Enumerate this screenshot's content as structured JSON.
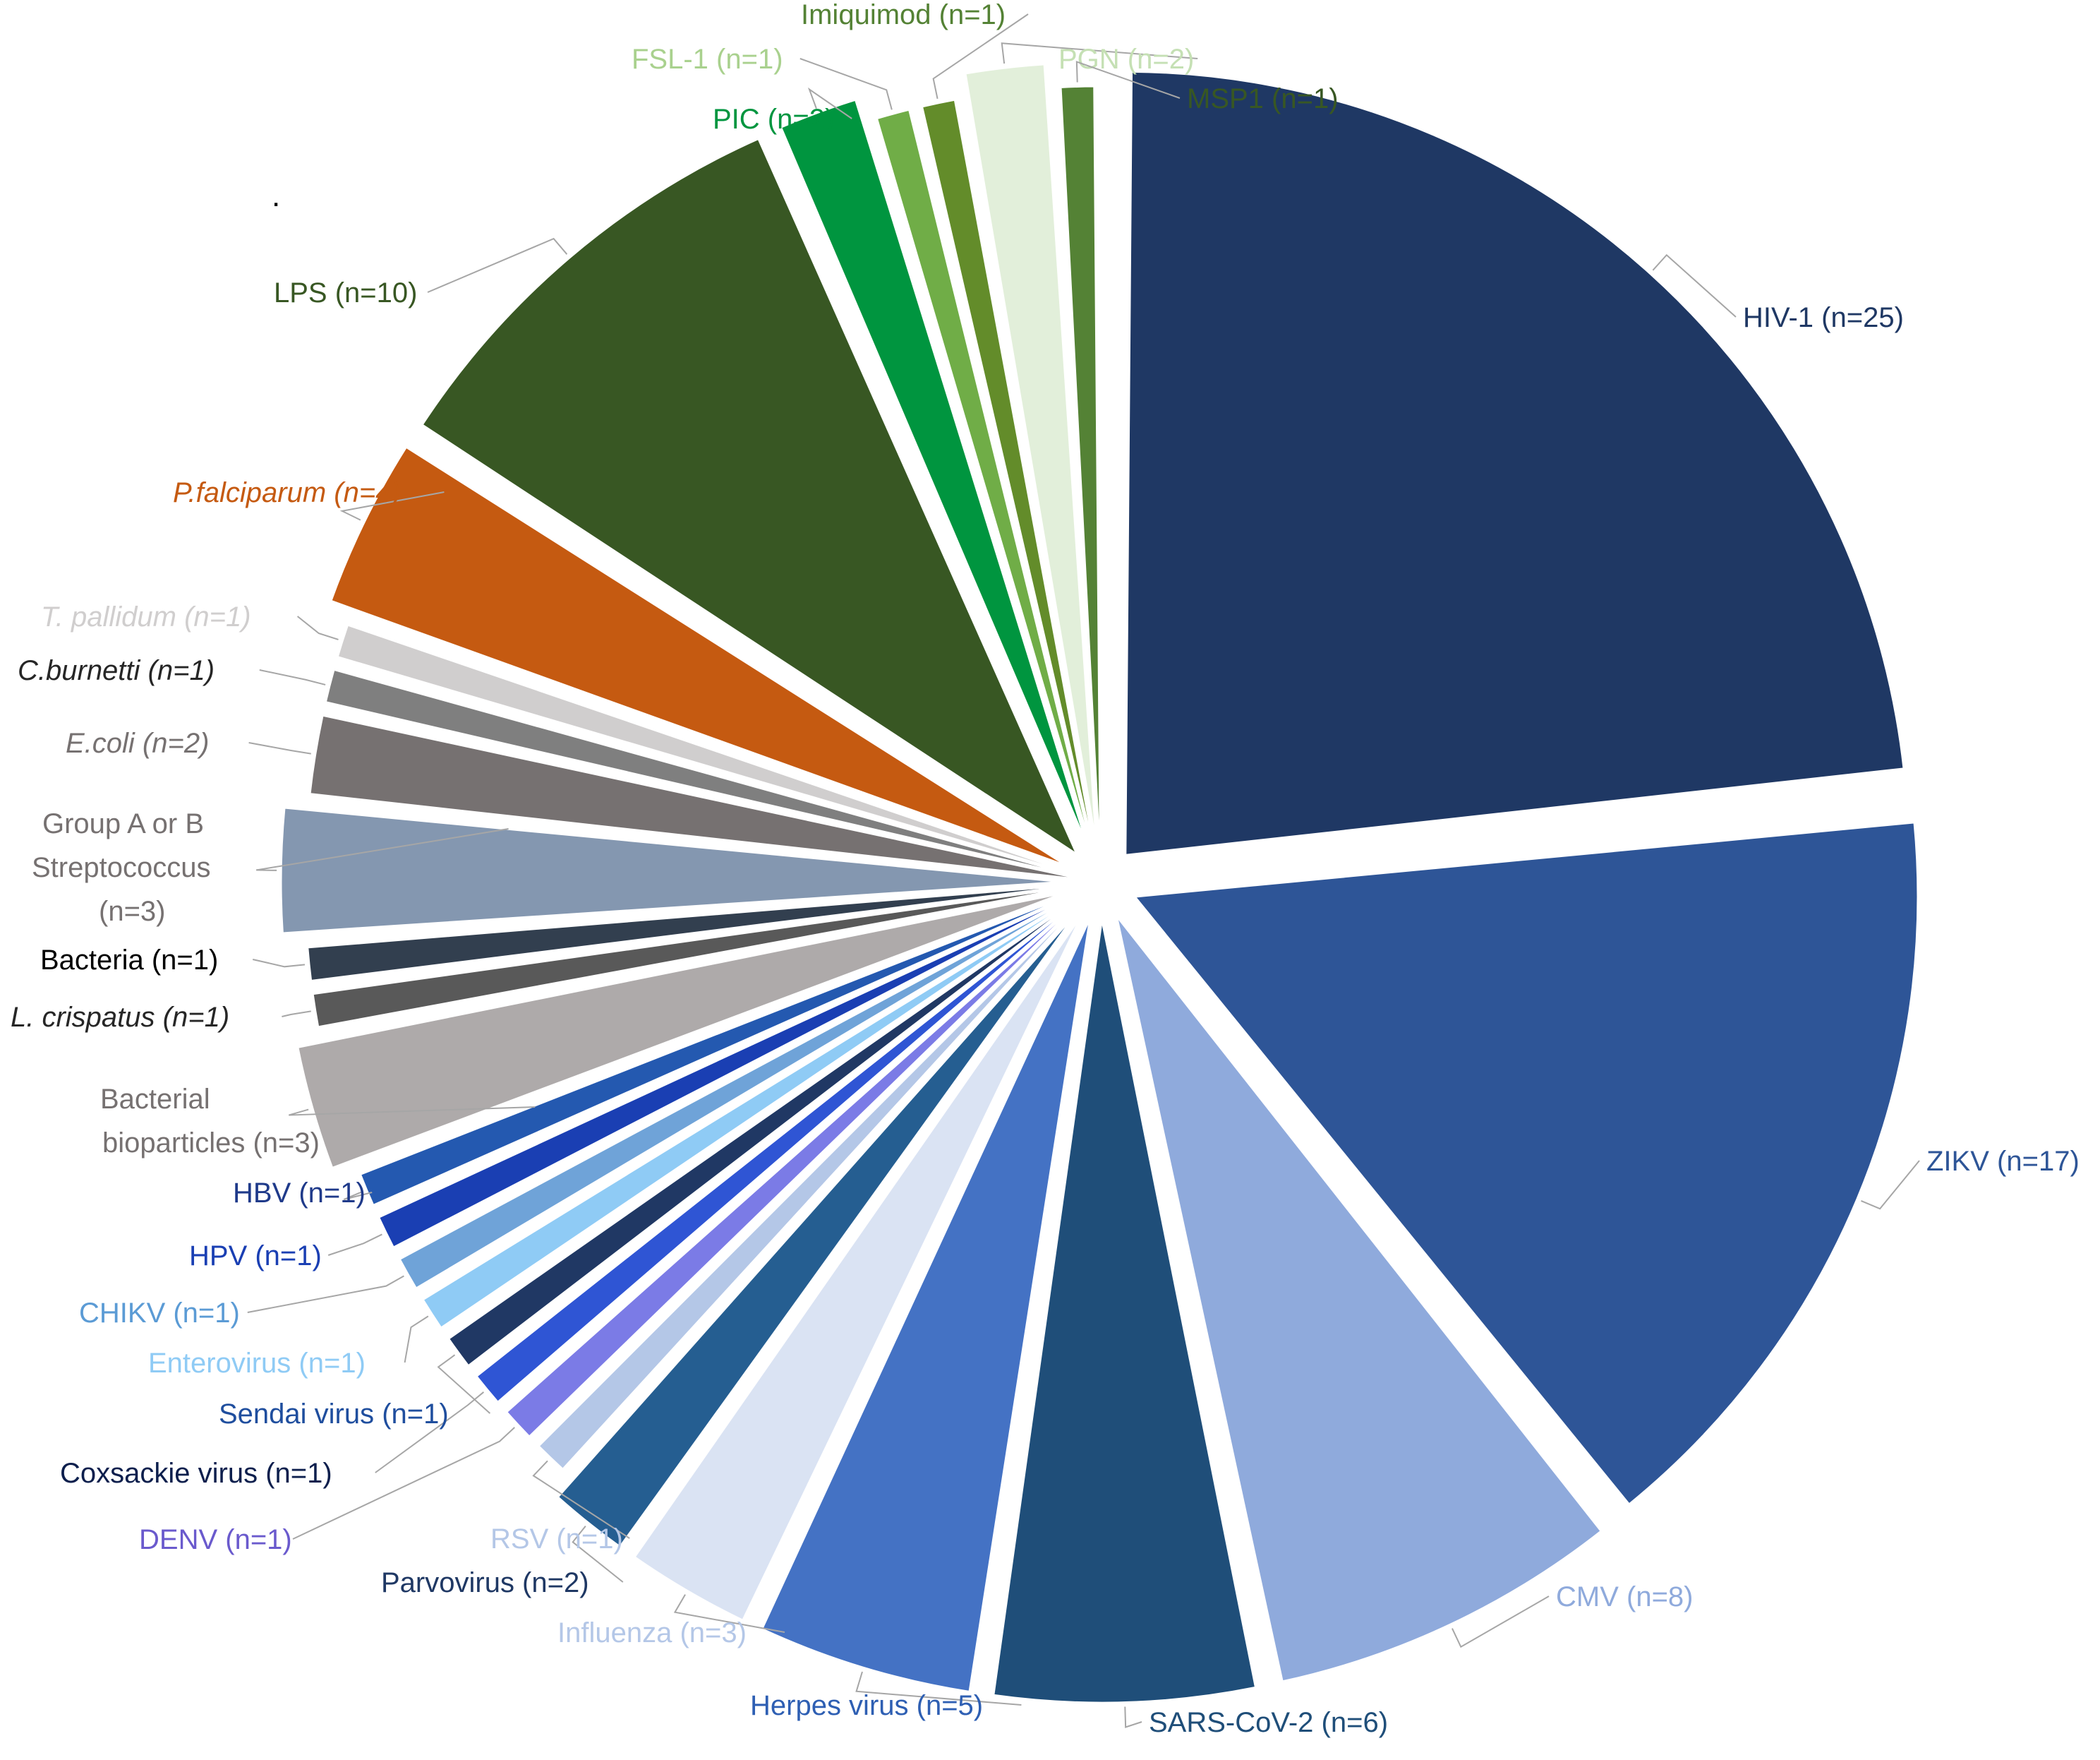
{
  "chart_data": {
    "type": "pie",
    "title": "",
    "stray_mark": ".",
    "slices": [
      {
        "label": "HIV-1 (n=25)",
        "name": "HIV-1",
        "value": 25,
        "color": "#1f3864",
        "label_color": "#1f3864",
        "italic": false
      },
      {
        "label": "ZIKV (n=17)",
        "name": "ZIKV",
        "value": 17,
        "color": "#2e5597",
        "label_color": "#2e5597",
        "italic": false
      },
      {
        "label": "CMV (n=8)",
        "name": "CMV",
        "value": 8,
        "color": "#8faadc",
        "label_color": "#8faadc",
        "italic": false
      },
      {
        "label": "SARS-CoV-2 (n=6)",
        "name": "SARS-CoV-2",
        "value": 6,
        "color": "#1f4e79",
        "label_color": "#1f4e79",
        "italic": false
      },
      {
        "label": "Herpes virus (n=5)",
        "name": "Herpes virus",
        "value": 5,
        "color": "#4472c4",
        "label_color": "#2e5fb3",
        "italic": false
      },
      {
        "label": "Influenza (n=3)",
        "name": "Influenza",
        "value": 3,
        "color": "#dae3f3",
        "label_color": "#b4c7e7",
        "italic": false
      },
      {
        "label": "Parvovirus (n=2)",
        "name": "Parvovirus",
        "value": 2,
        "color": "#255e91",
        "label_color": "#1f3864",
        "italic": false
      },
      {
        "label": "RSV (n=1)",
        "name": "RSV",
        "value": 1,
        "color": "#b4c7e7",
        "label_color": "#b4c7e7",
        "italic": false
      },
      {
        "label": "DENV (n=1)",
        "name": "DENV",
        "value": 1,
        "color": "#7b7be6",
        "label_color": "#6a5acd",
        "italic": false
      },
      {
        "label": "Coxsackie virus (n=1)",
        "name": "Coxsackie virus",
        "value": 1,
        "color": "#2f55d4",
        "label_color": "#0d1f4d",
        "italic": false
      },
      {
        "label": "Sendai virus (n=1)",
        "name": "Sendai virus",
        "value": 1,
        "color": "#203864",
        "label_color": "#1f4e9e",
        "italic": false
      },
      {
        "label": "Enterovirus (n=1)",
        "name": "Enterovirus",
        "value": 1,
        "color": "#8fcbf5",
        "label_color": "#8fcbf5",
        "italic": false
      },
      {
        "label": "CHIKV (n=1)",
        "name": "CHIKV",
        "value": 1,
        "color": "#6fa3d8",
        "label_color": "#5b9bd5",
        "italic": false
      },
      {
        "label": "HPV (n=1)",
        "name": "HPV",
        "value": 1,
        "color": "#1a3fb3",
        "label_color": "#1a3fb3",
        "italic": false
      },
      {
        "label": "HBV (n=1)",
        "name": "HBV",
        "value": 1,
        "color": "#2459b0",
        "label_color": "#1f3a8a",
        "italic": false
      },
      {
        "label": "Bacterial bioparticles  (n=3)",
        "name": "Bacterial bioparticles",
        "value": 3,
        "color": "#aeaaaa",
        "label_color": "#767171",
        "italic": false
      },
      {
        "label": "L. crispatus (n=1)",
        "name": "L. crispatus",
        "value": 1,
        "color": "#595959",
        "label_color": "#262626",
        "italic": true
      },
      {
        "label": "Bacteria (n=1)",
        "name": "Bacteria",
        "value": 1,
        "color": "#323f4f",
        "label_color": "#000000",
        "italic": false
      },
      {
        "label": "Group A or B Streptococcus (n=3)",
        "name": "Group A or B Streptococcus",
        "value": 3,
        "color": "#8497b0",
        "label_color": "#767171",
        "italic": false
      },
      {
        "label": "E.coli (n=2)",
        "name": "E.coli",
        "value": 2,
        "color": "#767171",
        "label_color": "#767171",
        "italic": true
      },
      {
        "label": "C.burnetti (n=1)",
        "name": "C.burnetti",
        "value": 1,
        "color": "#7f7f7f",
        "label_color": "#262626",
        "italic": true
      },
      {
        "label": "T. pallidum (n=1)",
        "name": "T. pallidum",
        "value": 1,
        "color": "#d0cece",
        "label_color": "#d0cece",
        "italic": true
      },
      {
        "label": "P.falciparum (n=4)",
        "name": "P.falciparum",
        "value": 4,
        "color": "#c55a11",
        "label_color": "#c55a11",
        "italic": true
      },
      {
        "label": "LPS (n=10)",
        "name": "LPS",
        "value": 10,
        "color": "#385723",
        "label_color": "#385723",
        "italic": false
      },
      {
        "label": "PIC (n=2)",
        "name": "PIC",
        "value": 2,
        "color": "#00953f",
        "label_color": "#00953f",
        "italic": false
      },
      {
        "label": "FSL-1 (n=1)",
        "name": "FSL-1",
        "value": 1,
        "color": "#70ad47",
        "label_color": "#a9d18e",
        "italic": false
      },
      {
        "label": "Imiquimod (n=1)",
        "name": "Imiquimod",
        "value": 1,
        "color": "#638c2a",
        "label_color": "#548235",
        "italic": false
      },
      {
        "label": "PGN (n=2)",
        "name": "PGN",
        "value": 2,
        "color": "#e2efda",
        "label_color": "#c5e0b4",
        "italic": false
      },
      {
        "label": "MSP1 (n=1)",
        "name": "MSP1",
        "value": 1,
        "color": "#548235",
        "label_color": "#385723",
        "italic": false
      }
    ]
  }
}
